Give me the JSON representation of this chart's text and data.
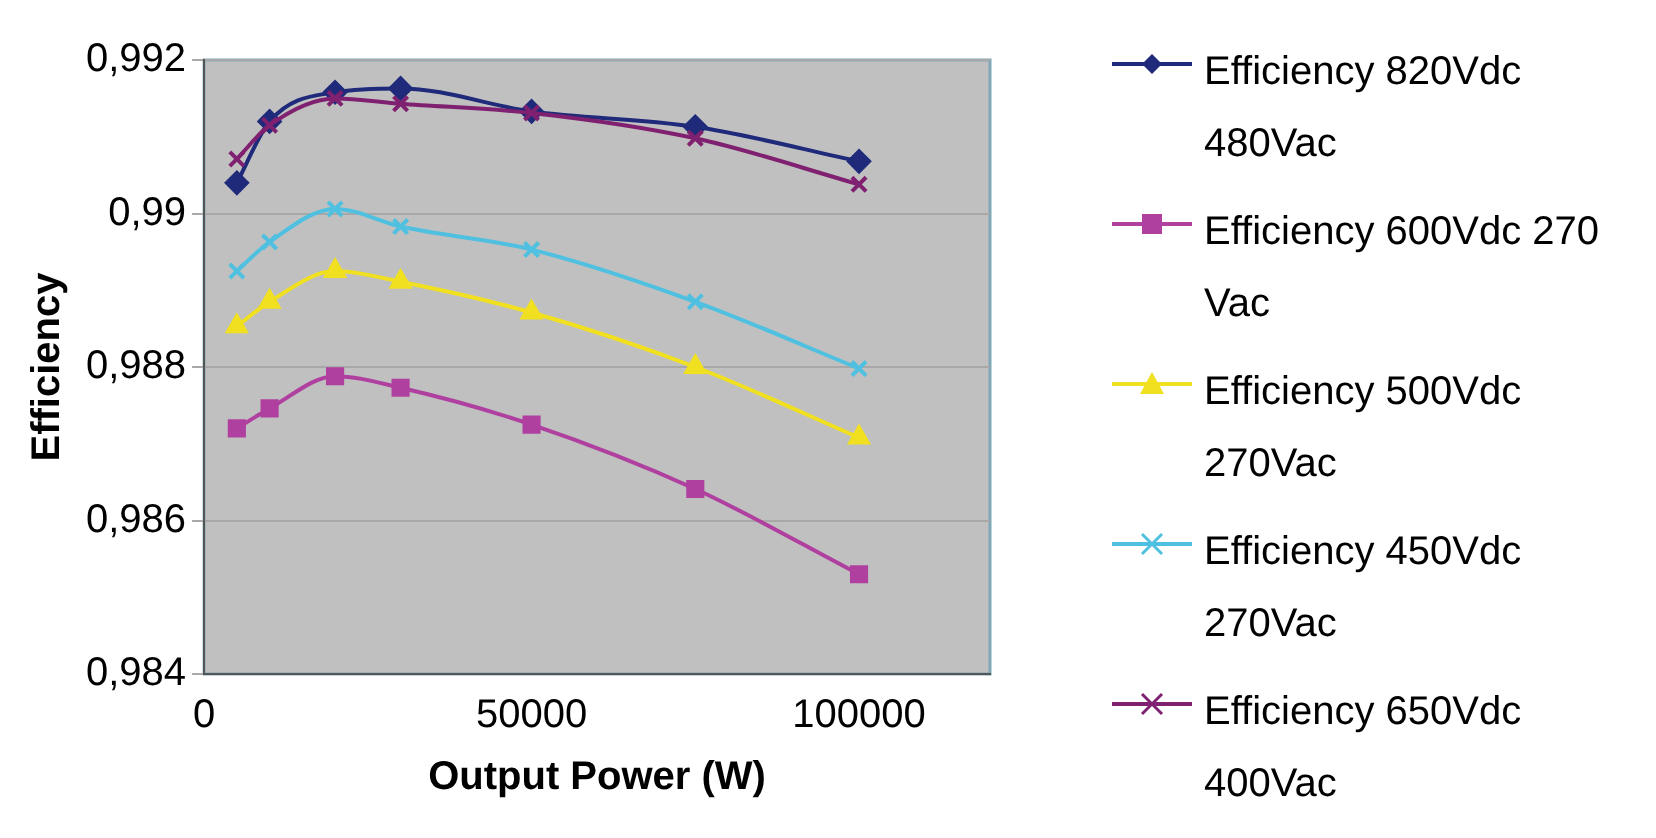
{
  "chart_data": {
    "type": "line",
    "xlabel": "Output Power (W)",
    "ylabel": "Efficiency",
    "x": [
      5000,
      10000,
      20000,
      30000,
      50000,
      75000,
      100000
    ],
    "series": [
      {
        "name": "Efficiency 820Vdc 480Vac",
        "color": "#1f2a7a",
        "marker": "diamond",
        "values": [
          0.9904,
          0.9912,
          0.99158,
          0.99163,
          0.99133,
          0.99113,
          0.99068
        ]
      },
      {
        "name": "Efficiency 600Vdc 270 Vac",
        "color": "#b040a0",
        "marker": "square",
        "values": [
          0.9872,
          0.98746,
          0.98788,
          0.98773,
          0.98725,
          0.98641,
          0.9853
        ]
      },
      {
        "name": "Efficiency 500Vdc 270Vac",
        "color": "#f0e020",
        "marker": "triangle",
        "values": [
          0.98853,
          0.98885,
          0.98925,
          0.98911,
          0.98871,
          0.988,
          0.98708
        ]
      },
      {
        "name": "Efficiency 450Vdc 270Vac",
        "color": "#50c0e0",
        "marker": "cross",
        "values": [
          0.98925,
          0.98963,
          0.99006,
          0.98983,
          0.98953,
          0.98885,
          0.98798
        ]
      },
      {
        "name": "Efficiency 650Vdc 400Vac",
        "color": "#802070",
        "marker": "cross",
        "values": [
          0.99071,
          0.99115,
          0.9915,
          0.99143,
          0.99131,
          0.99098,
          0.99038
        ]
      }
    ],
    "xlim": [
      0,
      120000
    ],
    "xticks": [
      0,
      50000,
      100000
    ],
    "ylim": [
      0.984,
      0.992
    ],
    "yticks": [
      {
        "value": 0.984,
        "label": "0,984"
      },
      {
        "value": 0.986,
        "label": "0,986"
      },
      {
        "value": 0.988,
        "label": "0,988"
      },
      {
        "value": 0.99,
        "label": "0,99"
      },
      {
        "value": 0.992,
        "label": "0,992"
      }
    ],
    "grid": "y",
    "legend": "right"
  }
}
